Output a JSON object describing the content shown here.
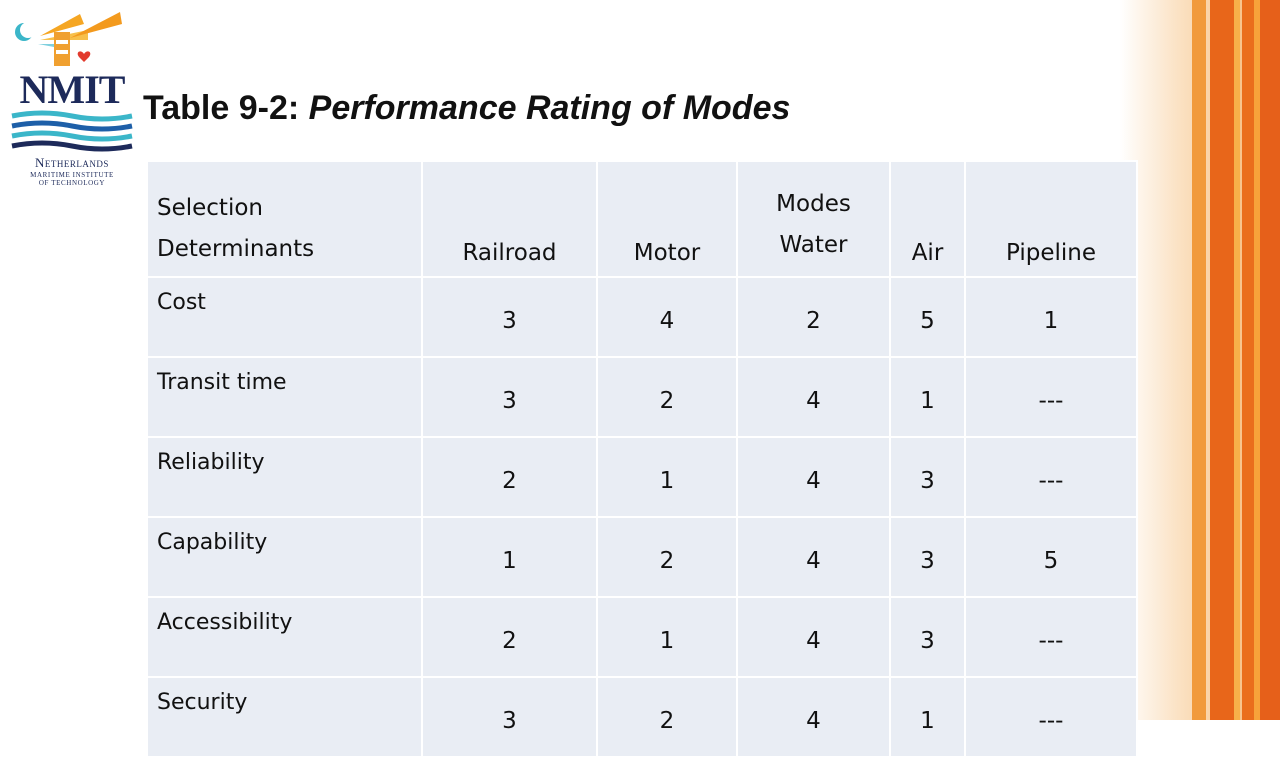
{
  "logo": {
    "word": "NMIT",
    "line1": "Netherlands",
    "line2": "Maritime Institute",
    "line3": "of Technology"
  },
  "title": {
    "bold": "Table 9-2: ",
    "italic": "Performance Rating of Modes"
  },
  "table": {
    "header": {
      "first_line1": "Selection",
      "first_line2": "Determinants",
      "railroad": "Railroad",
      "motor": "Motor",
      "water_top": "Modes",
      "water": "Water",
      "air": "Air",
      "pipeline": "Pipeline"
    },
    "rows": [
      {
        "label": "Cost",
        "cells": [
          "3",
          "4",
          "2",
          "5",
          "1"
        ]
      },
      {
        "label": "Transit time",
        "cells": [
          "3",
          "2",
          "4",
          "1",
          "---"
        ]
      },
      {
        "label": "Reliability",
        "cells": [
          "2",
          "1",
          "4",
          "3",
          "---"
        ]
      },
      {
        "label": "Capability",
        "cells": [
          "1",
          "2",
          "4",
          "3",
          "5"
        ]
      },
      {
        "label": "Accessibility",
        "cells": [
          "2",
          "1",
          "4",
          "3",
          "---"
        ]
      },
      {
        "label": "Security",
        "cells": [
          "3",
          "2",
          "4",
          "1",
          "---"
        ]
      }
    ]
  },
  "colors": {
    "stripe_dark": "#e8661a",
    "stripe_light": "#f7a33a",
    "cell_bg": "#e9edf4",
    "logo_navy": "#1d2a5a"
  }
}
